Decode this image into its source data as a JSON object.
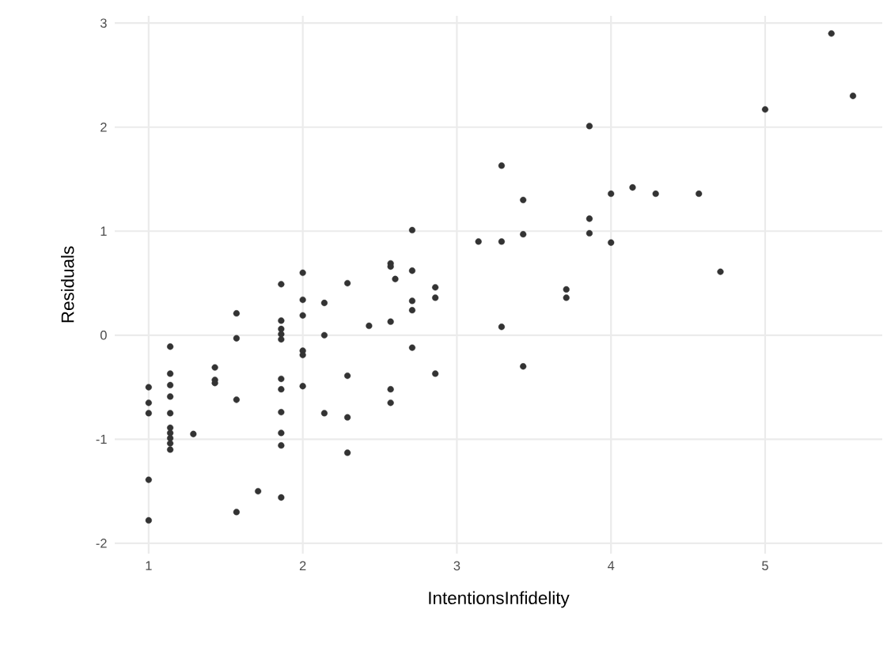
{
  "chart_data": {
    "type": "scatter",
    "xlabel": "IntentionsInfidelity",
    "ylabel": "Residuals",
    "xlim": [
      0.78,
      5.76
    ],
    "ylim": [
      -2.1,
      3.07
    ],
    "xticks": [
      1,
      2,
      3,
      4,
      5
    ],
    "yticks": [
      -2,
      -1,
      0,
      1,
      2,
      3
    ],
    "grid": true,
    "series": [
      {
        "color": "#333333",
        "x": [
          1,
          1,
          1,
          1,
          1,
          1.14,
          1.14,
          1.14,
          1.14,
          1.14,
          1.14,
          1.14,
          1.14,
          1.14,
          1.14,
          1.29,
          1.43,
          1.43,
          1.43,
          1.57,
          1.57,
          1.57,
          1.57,
          1.71,
          1.86,
          1.86,
          1.86,
          1.86,
          1.86,
          1.86,
          1.86,
          1.86,
          1.86,
          1.86,
          1.86,
          2,
          2,
          2,
          2,
          2,
          2,
          2.14,
          2.14,
          2.14,
          2.29,
          2.29,
          2.29,
          2.29,
          2.43,
          2.57,
          2.57,
          2.57,
          2.57,
          2.57,
          2.6,
          2.71,
          2.71,
          2.71,
          2.71,
          2.71,
          2.86,
          2.86,
          2.86,
          3.14,
          3.29,
          3.29,
          3.29,
          3.43,
          3.43,
          3.43,
          3.71,
          3.71,
          3.86,
          3.86,
          3.86,
          4,
          4,
          4.14,
          4.29,
          4.57,
          4.71,
          5,
          5.43,
          5.57
        ],
        "values": [
          -0.5,
          -0.65,
          -0.75,
          -1.39,
          -1.78,
          -0.11,
          -0.37,
          -0.48,
          -0.59,
          -0.75,
          -0.89,
          -0.94,
          -0.99,
          -1.04,
          -1.1,
          -0.95,
          -0.31,
          -0.43,
          -0.46,
          0.21,
          -0.03,
          -0.62,
          -1.7,
          -1.5,
          0.49,
          0.14,
          0.06,
          0.01,
          -0.04,
          -0.42,
          -0.52,
          -0.74,
          -0.94,
          -1.06,
          -1.56,
          0.6,
          0.34,
          0.19,
          -0.15,
          -0.19,
          -0.49,
          0.31,
          0.0,
          -0.75,
          0.5,
          -0.39,
          -0.79,
          -1.13,
          0.09,
          0.69,
          0.66,
          0.13,
          -0.52,
          -0.65,
          0.54,
          1.01,
          0.62,
          0.33,
          0.24,
          -0.12,
          0.46,
          0.36,
          -0.37,
          0.9,
          1.63,
          0.9,
          0.08,
          1.3,
          0.97,
          -0.3,
          0.44,
          0.36,
          2.01,
          1.12,
          0.98,
          1.36,
          0.89,
          1.42,
          1.36,
          1.36,
          0.61,
          2.17,
          2.9,
          2.3
        ]
      }
    ]
  }
}
